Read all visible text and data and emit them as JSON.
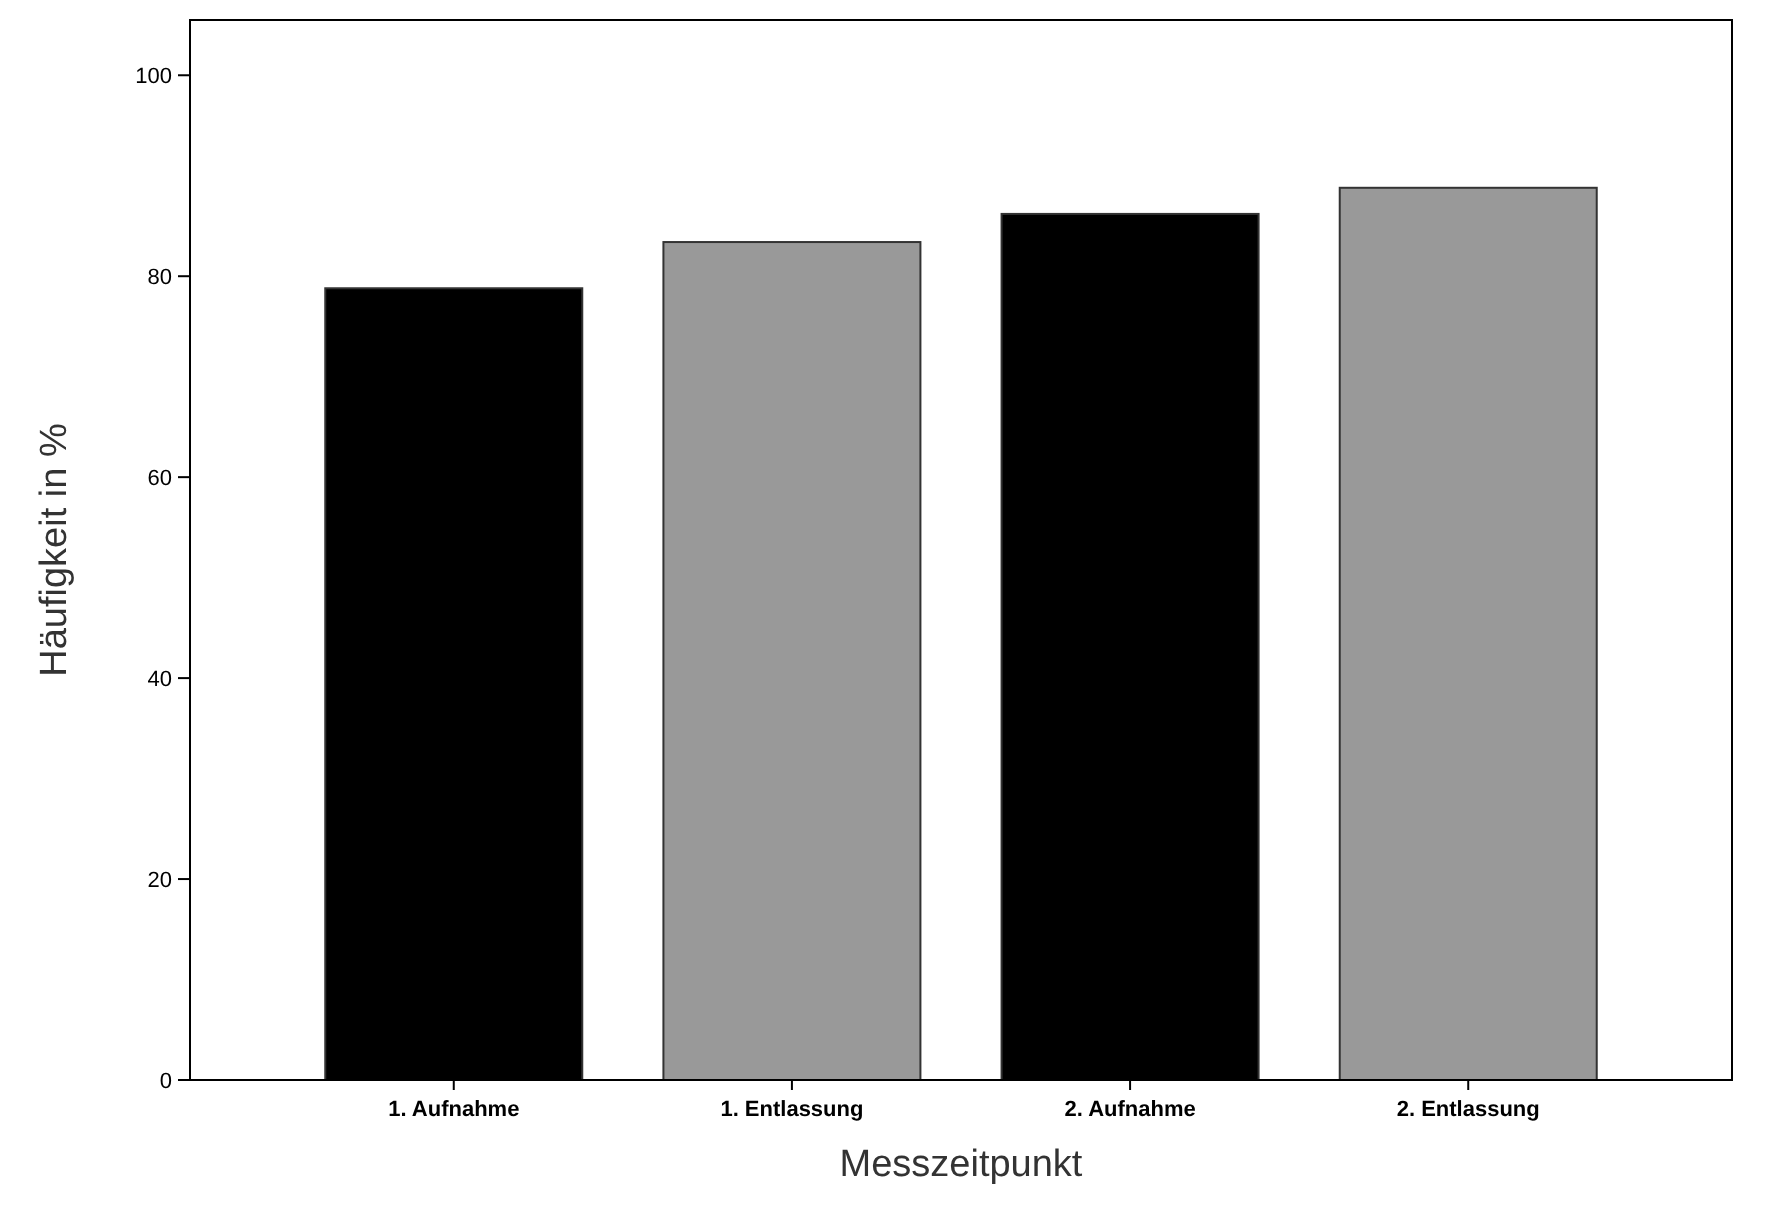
{
  "chart_data": {
    "type": "bar",
    "xlabel": "Messzeitpunkt",
    "ylabel": "Häufigkeit in %",
    "categories": [
      "1. Aufnahme",
      "1. Entlassung",
      "2. Aufnahme",
      "2. Entlassung"
    ],
    "values": [
      78.8,
      83.4,
      86.2,
      88.8
    ],
    "colors": [
      "#000000",
      "#999999",
      "#000000",
      "#999999"
    ],
    "ylim": [
      0,
      105.5
    ],
    "yticks": [
      0,
      20,
      40,
      60,
      80,
      100
    ],
    "grid": false
  }
}
